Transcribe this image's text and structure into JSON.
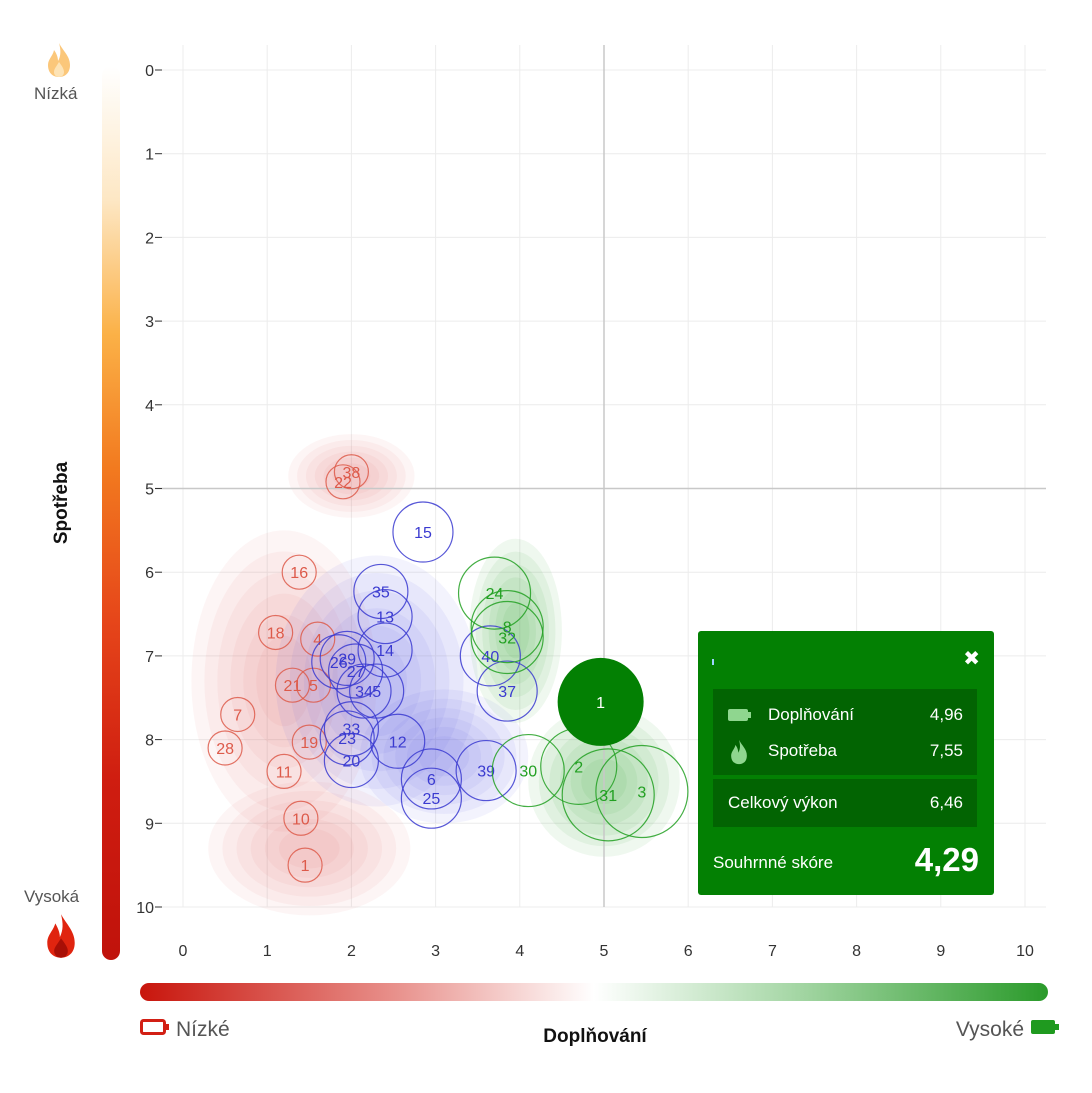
{
  "chart_data": {
    "type": "scatter",
    "xlabel": "Doplňování",
    "ylabel": "Spotřeba",
    "xlim": [
      0,
      10
    ],
    "ylim": [
      0,
      10
    ],
    "y_reversed": true,
    "grid": true,
    "x_ticks": [
      "0",
      "1",
      "2",
      "3",
      "4",
      "5",
      "6",
      "7",
      "8",
      "9",
      "10"
    ],
    "y_ticks": [
      "0",
      "1",
      "2",
      "3",
      "4",
      "5",
      "6",
      "7",
      "8",
      "9",
      "10"
    ],
    "reference_lines": {
      "x": 5,
      "y": 5
    },
    "colors": {
      "red": "#dd5a4a",
      "blue": "#3a3ad0",
      "green": "#22a022",
      "highlight": "#038003"
    },
    "series": [
      {
        "group": "red",
        "points": [
          {
            "label": "38",
            "x": 2.0,
            "y": 4.8
          },
          {
            "label": "22",
            "x": 1.9,
            "y": 4.92
          },
          {
            "label": "16",
            "x": 1.38,
            "y": 6.0
          },
          {
            "label": "18",
            "x": 1.1,
            "y": 6.72
          },
          {
            "label": "4",
            "x": 1.6,
            "y": 6.8
          },
          {
            "label": "21",
            "x": 1.3,
            "y": 7.35
          },
          {
            "label": "5",
            "x": 1.55,
            "y": 7.35
          },
          {
            "label": "7",
            "x": 0.65,
            "y": 7.7
          },
          {
            "label": "28",
            "x": 0.5,
            "y": 8.1
          },
          {
            "label": "19",
            "x": 1.5,
            "y": 8.03
          },
          {
            "label": "11",
            "x": 1.2,
            "y": 8.38
          },
          {
            "label": "10",
            "x": 1.4,
            "y": 8.94
          },
          {
            "label": "1",
            "x": 1.45,
            "y": 9.5
          }
        ]
      },
      {
        "group": "blue",
        "points": [
          {
            "label": "15",
            "x": 2.85,
            "y": 5.52
          },
          {
            "label": "35",
            "x": 2.35,
            "y": 6.23
          },
          {
            "label": "13",
            "x": 2.4,
            "y": 6.53
          },
          {
            "label": "14",
            "x": 2.4,
            "y": 6.93
          },
          {
            "label": "29",
            "x": 1.95,
            "y": 7.03
          },
          {
            "label": "26",
            "x": 1.85,
            "y": 7.07
          },
          {
            "label": "27",
            "x": 2.05,
            "y": 7.18
          },
          {
            "label": "34",
            "x": 2.15,
            "y": 7.42
          },
          {
            "label": "5",
            "x": 2.3,
            "y": 7.42
          },
          {
            "label": "33",
            "x": 2.0,
            "y": 7.87
          },
          {
            "label": "23",
            "x": 1.95,
            "y": 7.98
          },
          {
            "label": "12",
            "x": 2.55,
            "y": 8.02
          },
          {
            "label": "20",
            "x": 2.0,
            "y": 8.25
          },
          {
            "label": "6",
            "x": 2.95,
            "y": 8.47
          },
          {
            "label": "25",
            "x": 2.95,
            "y": 8.7
          },
          {
            "label": "39",
            "x": 3.6,
            "y": 8.37
          },
          {
            "label": "40",
            "x": 3.65,
            "y": 7.0
          },
          {
            "label": "37",
            "x": 3.85,
            "y": 7.42
          }
        ]
      },
      {
        "group": "green",
        "points": [
          {
            "label": "24",
            "x": 3.7,
            "y": 6.25
          },
          {
            "label": "8",
            "x": 3.85,
            "y": 6.65
          },
          {
            "label": "32",
            "x": 3.85,
            "y": 6.78
          },
          {
            "label": "30",
            "x": 4.1,
            "y": 8.37
          },
          {
            "label": "2",
            "x": 4.7,
            "y": 8.32
          },
          {
            "label": "31",
            "x": 5.05,
            "y": 8.66
          },
          {
            "label": "3",
            "x": 5.45,
            "y": 8.62
          }
        ]
      }
    ],
    "highlight": {
      "label": "1",
      "x": 4.96,
      "y": 7.55
    },
    "density_regions": [
      {
        "group": "red",
        "cx": 2.0,
        "cy": 4.85,
        "rx": 0.75,
        "ry": 0.5
      },
      {
        "group": "red",
        "cx": 1.2,
        "cy": 7.3,
        "rx": 1.1,
        "ry": 1.8
      },
      {
        "group": "red",
        "cx": 1.5,
        "cy": 9.3,
        "rx": 1.2,
        "ry": 0.8
      },
      {
        "group": "blue",
        "cx": 2.3,
        "cy": 7.3,
        "rx": 1.2,
        "ry": 1.5
      },
      {
        "group": "blue",
        "cx": 3.1,
        "cy": 8.2,
        "rx": 1.0,
        "ry": 0.8
      },
      {
        "group": "green",
        "cx": 3.95,
        "cy": 6.7,
        "rx": 0.55,
        "ry": 1.1
      },
      {
        "group": "green",
        "cx": 5.0,
        "cy": 8.5,
        "rx": 0.9,
        "ry": 0.9
      }
    ]
  },
  "yaxis": {
    "low_label": "Nízká",
    "high_label": "Vysoká",
    "title": "Spotřeba"
  },
  "xaxis": {
    "low_label": "Nízké",
    "high_label": "Vysoké",
    "title": "Doplňování"
  },
  "tooltip": {
    "rows": [
      {
        "icon": "battery-icon",
        "label": "Doplňování",
        "value": "4,96"
      },
      {
        "icon": "flame-icon",
        "label": "Spotřeba",
        "value": "7,55"
      }
    ],
    "total_label": "Celkový výkon",
    "total_value": "6,46",
    "score_label": "Souhrnné skóre",
    "score_value": "4,29"
  }
}
